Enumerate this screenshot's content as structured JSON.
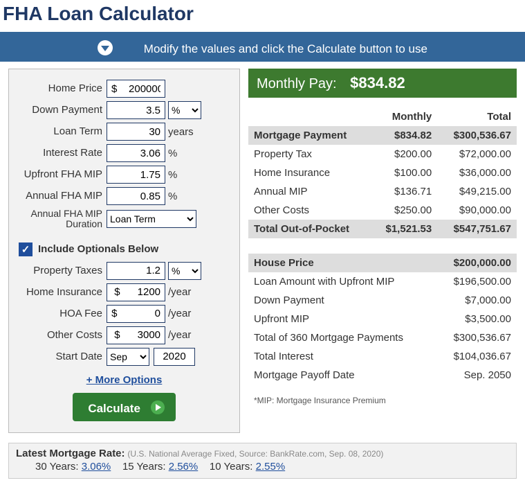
{
  "title": "FHA Loan Calculator",
  "banner_text": "Modify the values and click the Calculate button to use",
  "form": {
    "home_price_label": "Home Price",
    "home_price_value": "$    200000",
    "down_payment_label": "Down Payment",
    "down_payment_value": "3.5",
    "down_payment_unit": "%",
    "loan_term_label": "Loan Term",
    "loan_term_value": "30",
    "loan_term_unit": "years",
    "interest_rate_label": "Interest Rate",
    "interest_rate_value": "3.06",
    "interest_rate_unit": "%",
    "upfront_mip_label": "Upfront FHA MIP",
    "upfront_mip_value": "1.75",
    "upfront_mip_unit": "%",
    "annual_mip_label": "Annual FHA MIP",
    "annual_mip_value": "0.85",
    "annual_mip_unit": "%",
    "mip_duration_label": "Annual FHA MIP Duration",
    "mip_duration_value": "Loan Term",
    "include_optionals_label": "Include Optionals Below",
    "property_taxes_label": "Property Taxes",
    "property_taxes_value": "1.2",
    "property_taxes_unit": "%",
    "home_insurance_label": "Home Insurance",
    "home_insurance_value": "$      1200",
    "home_insurance_unit": "/year",
    "hoa_label": "HOA Fee",
    "hoa_value": "$             0",
    "hoa_unit": "/year",
    "other_costs_label": "Other Costs",
    "other_costs_value": "$      3000",
    "other_costs_unit": "/year",
    "start_date_label": "Start Date",
    "start_month": "Sep",
    "start_year": "2020",
    "more_options": "+ More Options",
    "calculate": "Calculate"
  },
  "results": {
    "monthly_pay_label": "Monthly Pay:",
    "monthly_pay_value": "$834.82",
    "col_monthly": "Monthly",
    "col_total": "Total",
    "rows": [
      {
        "label": "Mortgage Payment",
        "monthly": "$834.82",
        "total": "$300,536.67",
        "hl": true
      },
      {
        "label": "Property Tax",
        "monthly": "$200.00",
        "total": "$72,000.00"
      },
      {
        "label": "Home Insurance",
        "monthly": "$100.00",
        "total": "$36,000.00"
      },
      {
        "label": "Annual MIP",
        "monthly": "$136.71",
        "total": "$49,215.00"
      },
      {
        "label": "Other Costs",
        "monthly": "$250.00",
        "total": "$90,000.00"
      },
      {
        "label": "Total Out-of-Pocket",
        "monthly": "$1,521.53",
        "total": "$547,751.67",
        "hl": true
      }
    ],
    "summary": [
      {
        "label": "House Price",
        "value": "$200,000.00",
        "hl": true
      },
      {
        "label": "Loan Amount with Upfront MIP",
        "value": "$196,500.00"
      },
      {
        "label": "Down Payment",
        "value": "$7,000.00"
      },
      {
        "label": "Upfront MIP",
        "value": "$3,500.00"
      },
      {
        "label": "Total of 360 Mortgage Payments",
        "value": "$300,536.67"
      },
      {
        "label": "Total Interest",
        "value": "$104,036.67"
      },
      {
        "label": "Mortgage Payoff Date",
        "value": "Sep. 2050"
      }
    ],
    "footnote": "*MIP: Mortgage Insurance Premium"
  },
  "latest": {
    "title": "Latest Mortgage Rate:",
    "source": "(U.S. National Average Fixed, Source: BankRate.com, Sep. 08, 2020)",
    "y30_label": "30 Years:",
    "y30_rate": "3.06%",
    "y15_label": "15 Years:",
    "y15_rate": "2.56%",
    "y10_label": "10 Years:",
    "y10_rate": "2.55%"
  }
}
